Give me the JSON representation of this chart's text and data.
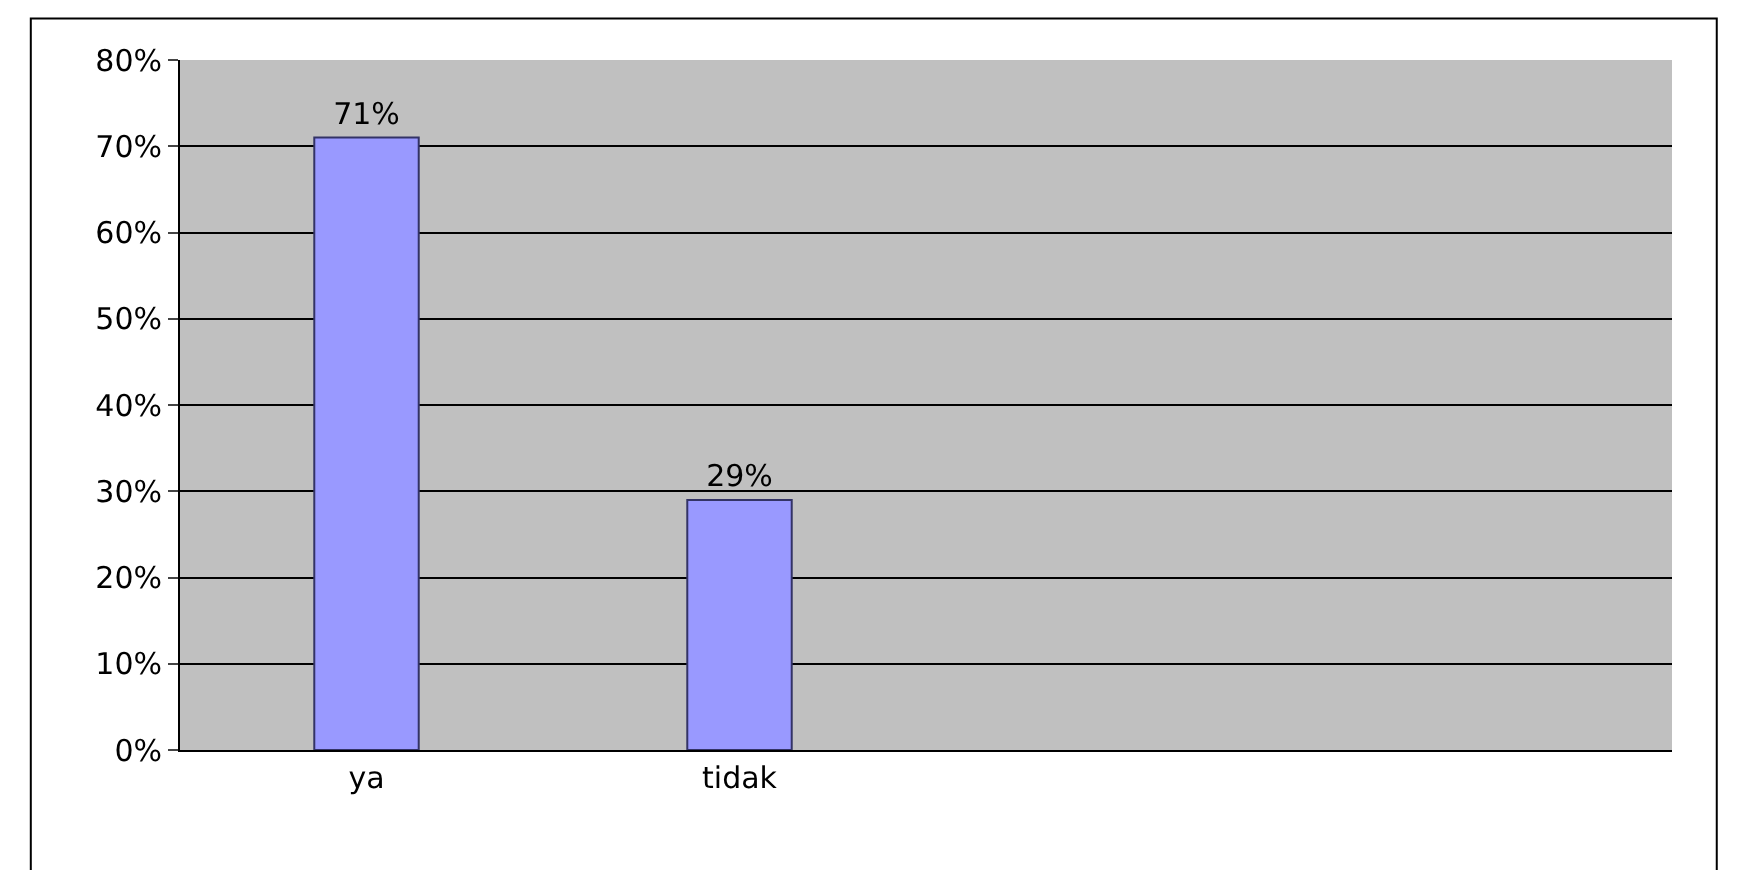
{
  "chart_data": {
    "type": "bar",
    "categories": [
      "ya",
      "tidak",
      null,
      null
    ],
    "values": [
      71,
      29,
      null,
      null
    ],
    "value_labels": [
      "71%",
      "29%",
      null,
      null
    ],
    "color": "#9999ff",
    "ylim": [
      0,
      80
    ],
    "yticks": [
      {
        "value": 0,
        "label": "0%"
      },
      {
        "value": 10,
        "label": "10%"
      },
      {
        "value": 20,
        "label": "20%"
      },
      {
        "value": 30,
        "label": "30%"
      },
      {
        "value": 40,
        "label": "40%"
      },
      {
        "value": 50,
        "label": "50%"
      },
      {
        "value": 60,
        "label": "60%"
      },
      {
        "value": 70,
        "label": "70%"
      },
      {
        "value": 80,
        "label": "80%"
      }
    ],
    "grid": "y",
    "legend": false
  }
}
